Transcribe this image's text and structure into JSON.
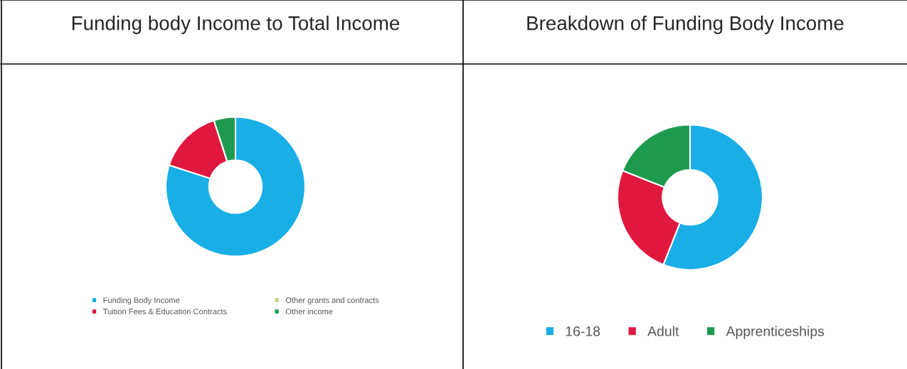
{
  "chart_data": [
    {
      "type": "donut",
      "title": "Funding body Income to Total Income",
      "categories": [
        "Funding Body Income",
        "Tuition Fees & Education Contracts",
        "Other grants and contracts",
        "Other income"
      ],
      "values": [
        80,
        15,
        0,
        5
      ],
      "colors": [
        "#19aee6",
        "#e0183f",
        "#c8d08c",
        "#1e9a4f"
      ],
      "legend": "bottom"
    },
    {
      "type": "donut",
      "title": "Breakdown of Funding Body Income",
      "categories": [
        "16-18",
        "Adult",
        "Apprenticeships"
      ],
      "values": [
        56,
        25,
        19
      ],
      "colors": [
        "#19aee6",
        "#e0183f",
        "#1e9a4f"
      ],
      "legend": "bottom"
    }
  ]
}
